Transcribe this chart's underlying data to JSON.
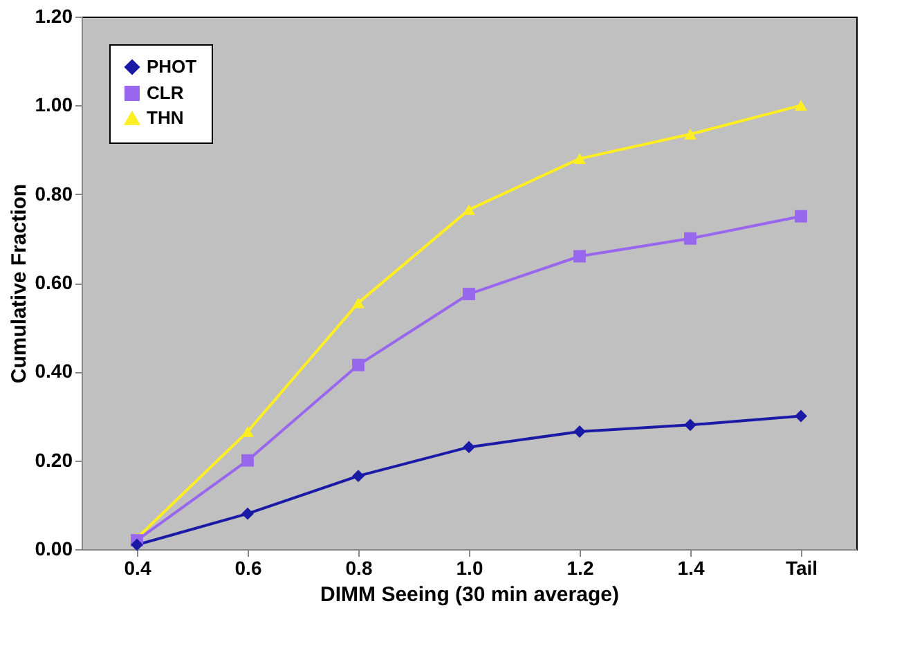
{
  "chart_data": {
    "type": "line",
    "xlabel": "DIMM Seeing (30 min average)",
    "ylabel": "Cumulative Fraction",
    "categories": [
      "0.4",
      "0.6",
      "0.8",
      "1.0",
      "1.2",
      "1.4",
      "Tail"
    ],
    "ylim": [
      0,
      1.2
    ],
    "yticks": [
      {
        "value": 0,
        "label": "0.00"
      },
      {
        "value": 0.2,
        "label": "0.20"
      },
      {
        "value": 0.4,
        "label": "0.40"
      },
      {
        "value": 0.6,
        "label": "0.60"
      },
      {
        "value": 0.8,
        "label": "0.80"
      },
      {
        "value": 1.0,
        "label": "1.00"
      },
      {
        "value": 1.2,
        "label": "1.20"
      }
    ],
    "grid": false,
    "legend": "top left",
    "line_style": "solid",
    "series": [
      {
        "name": "PHOT",
        "color": "#1a1aa6",
        "marker": "diamond",
        "values": [
          0.01,
          0.08,
          0.165,
          0.23,
          0.265,
          0.28,
          0.3
        ]
      },
      {
        "name": "CLR",
        "color": "#9966ee",
        "marker": "square",
        "values": [
          0.02,
          0.2,
          0.415,
          0.575,
          0.66,
          0.7,
          0.75
        ]
      },
      {
        "name": "THN",
        "color": "#ffee22",
        "marker": "triangle",
        "values": [
          0.025,
          0.265,
          0.555,
          0.765,
          0.88,
          0.935,
          1.0
        ]
      }
    ]
  }
}
